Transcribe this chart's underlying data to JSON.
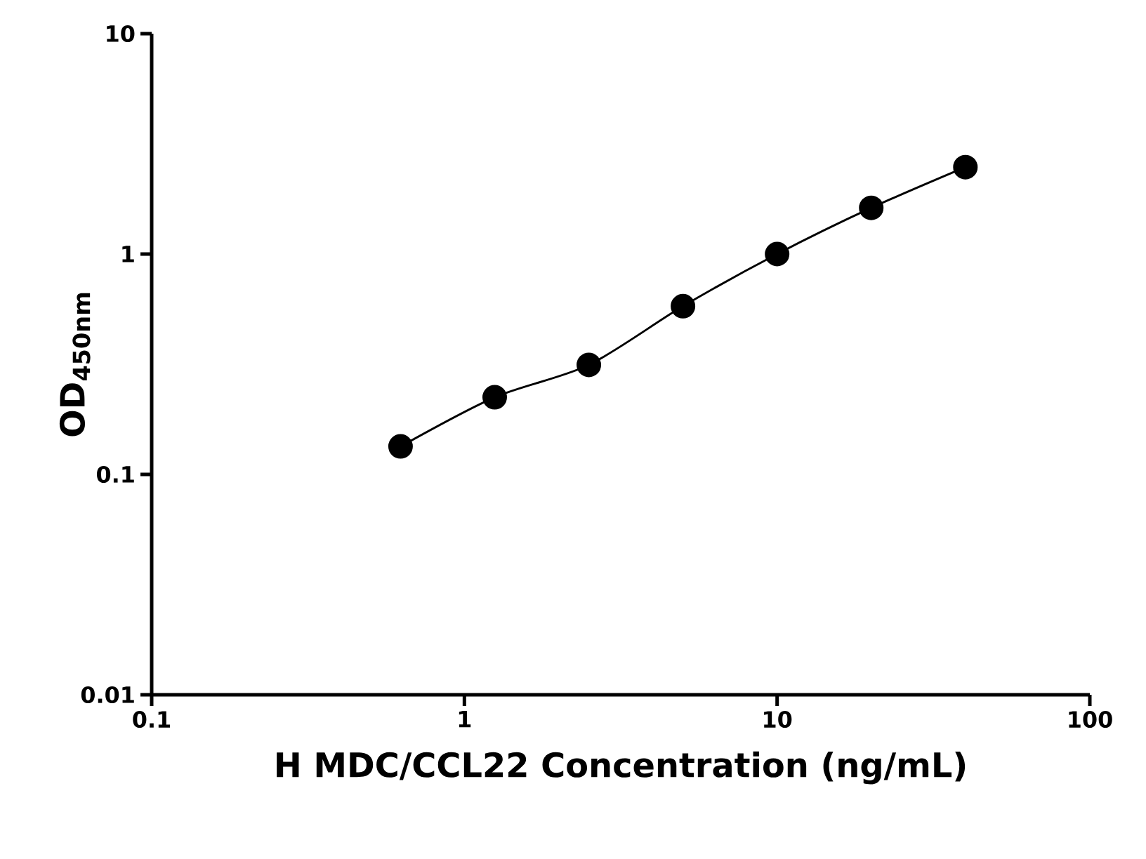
{
  "chart_data": {
    "type": "line",
    "xlabel": "H MDC/CCL22 Concentration (ng/mL)",
    "ylabel": "OD$_{450nm}$",
    "x": [
      0.625,
      1.25,
      2.5,
      5,
      10,
      20,
      40
    ],
    "series": [
      {
        "color": "#000000",
        "values": [
          0.134,
          0.224,
          0.314,
          0.58,
          1.0,
          1.62,
          2.48
        ]
      }
    ],
    "log": "xy",
    "marker": "circle",
    "line_style": "solid",
    "grid": false,
    "xlim": [
      0.1,
      100
    ],
    "xticks": [
      0.1,
      1,
      10,
      100
    ],
    "ylim": [
      0.01,
      10
    ],
    "yticks": [
      0.01,
      0.1,
      1,
      10
    ]
  }
}
